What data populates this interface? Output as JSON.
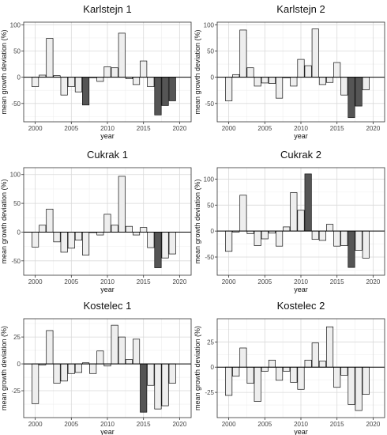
{
  "colors": {
    "light": "#eeeeee",
    "dark": "#555555",
    "stroke": "#111111",
    "grid_major": "#d9d9d9",
    "grid_minor": "#efefef"
  },
  "chart_data": [
    {
      "type": "bar",
      "title": "Karlstejn 1",
      "xlabel": "year",
      "ylabel": "mean growth deviation (%)",
      "xlim": [
        1998.4,
        2021.6
      ],
      "ylim": [
        -85,
        105
      ],
      "xticks": [
        2000,
        2005,
        2010,
        2015,
        2020
      ],
      "yticks": [
        -50,
        0,
        50,
        100
      ],
      "x": [
        2000,
        2001,
        2002,
        2003,
        2004,
        2005,
        2006,
        2007,
        2008,
        2009,
        2010,
        2011,
        2012,
        2013,
        2014,
        2015,
        2016,
        2017,
        2018,
        2019
      ],
      "values": [
        -18,
        4,
        74,
        3,
        -34,
        -18,
        -28,
        -53,
        0,
        -8,
        20,
        18,
        84,
        -3,
        -14,
        31,
        -18,
        -72,
        -54,
        -45
      ],
      "dark_years": [
        2007,
        2017,
        2018,
        2019
      ],
      "grid": true
    },
    {
      "type": "bar",
      "title": "Karlstejn 2",
      "xlabel": "year",
      "ylabel": "mean growth deviation (%)",
      "xlim": [
        1998.4,
        2021.6
      ],
      "ylim": [
        -85,
        105
      ],
      "xticks": [
        2000,
        2005,
        2010,
        2015,
        2020
      ],
      "yticks": [
        -50,
        0,
        50,
        100
      ],
      "x": [
        2000,
        2001,
        2002,
        2003,
        2004,
        2005,
        2006,
        2007,
        2008,
        2009,
        2010,
        2011,
        2012,
        2013,
        2014,
        2015,
        2016,
        2017,
        2018,
        2019
      ],
      "values": [
        -45,
        5,
        90,
        18,
        -17,
        -11,
        -12,
        -40,
        0,
        -17,
        34,
        22,
        92,
        -14,
        -10,
        28,
        -34,
        -77,
        -55,
        -24
      ],
      "dark_years": [
        2017,
        2018
      ],
      "grid": true
    },
    {
      "type": "bar",
      "title": "Cukrak 1",
      "xlabel": "year",
      "ylabel": "mean growth deviation (%)",
      "xlim": [
        1998.4,
        2021.6
      ],
      "ylim": [
        -75,
        112
      ],
      "xticks": [
        2000,
        2005,
        2010,
        2015,
        2020
      ],
      "yticks": [
        -50,
        0,
        50,
        100
      ],
      "x": [
        2000,
        2001,
        2002,
        2003,
        2004,
        2005,
        2006,
        2007,
        2008,
        2009,
        2010,
        2011,
        2012,
        2013,
        2014,
        2015,
        2016,
        2017,
        2018,
        2019
      ],
      "values": [
        -26,
        12,
        40,
        -17,
        -35,
        -28,
        -14,
        -40,
        0,
        -5,
        31,
        12,
        97,
        10,
        -5,
        8,
        -27,
        -62,
        -45,
        -38
      ],
      "dark_years": [
        2017
      ],
      "grid": true
    },
    {
      "type": "bar",
      "title": "Cukrak 2",
      "xlabel": "year",
      "ylabel": "mean growth deviation (%)",
      "xlim": [
        1998.4,
        2021.6
      ],
      "ylim": [
        -85,
        122
      ],
      "xticks": [
        2000,
        2005,
        2010,
        2015,
        2020
      ],
      "yticks": [
        -50,
        0,
        50,
        100
      ],
      "x": [
        2000,
        2001,
        2002,
        2003,
        2004,
        2005,
        2006,
        2007,
        2008,
        2009,
        2010,
        2011,
        2012,
        2013,
        2014,
        2015,
        2016,
        2017,
        2018,
        2019
      ],
      "values": [
        -39,
        -2,
        69,
        -5,
        -28,
        -15,
        -4,
        -29,
        8,
        74,
        40,
        110,
        -16,
        -18,
        13,
        -29,
        -28,
        -70,
        -37,
        -52
      ],
      "dark_years": [
        2011,
        2017
      ],
      "grid": true
    },
    {
      "type": "bar",
      "title": "Kostelec 1",
      "xlabel": "year",
      "ylabel": "mean growth deviation (%)",
      "xlim": [
        1998.4,
        2021.6
      ],
      "ylim": [
        -50,
        42
      ],
      "xticks": [
        2000,
        2005,
        2010,
        2015,
        2020
      ],
      "yticks": [
        -25,
        0,
        25
      ],
      "x": [
        2000,
        2001,
        2002,
        2003,
        2004,
        2005,
        2006,
        2007,
        2008,
        2009,
        2010,
        2011,
        2012,
        2013,
        2014,
        2015,
        2016,
        2017,
        2018,
        2019
      ],
      "values": [
        -37,
        -1,
        31,
        -18,
        -16,
        -9,
        -8,
        1,
        -9,
        12,
        -2,
        36,
        25,
        4,
        23,
        -45,
        -20,
        -42,
        -39,
        -18
      ],
      "dark_years": [
        2015
      ],
      "grid": true
    },
    {
      "type": "bar",
      "title": "Kostelec 2",
      "xlabel": "year",
      "ylabel": "mean growth deviation (%)",
      "xlim": [
        1998.4,
        2021.6
      ],
      "ylim": [
        -50,
        48
      ],
      "xticks": [
        2000,
        2005,
        2010,
        2015,
        2020
      ],
      "yticks": [
        -25,
        0,
        25
      ],
      "x": [
        2000,
        2001,
        2002,
        2003,
        2004,
        2005,
        2006,
        2007,
        2008,
        2009,
        2010,
        2011,
        2012,
        2013,
        2014,
        2015,
        2016,
        2017,
        2018,
        2019
      ],
      "values": [
        -28,
        -9,
        19,
        -16,
        -34,
        -4,
        7,
        -13,
        -4,
        -15,
        -22,
        7,
        24,
        6,
        40,
        -20,
        -8,
        -37,
        -43,
        -27
      ],
      "dark_years": [],
      "grid": true
    }
  ]
}
